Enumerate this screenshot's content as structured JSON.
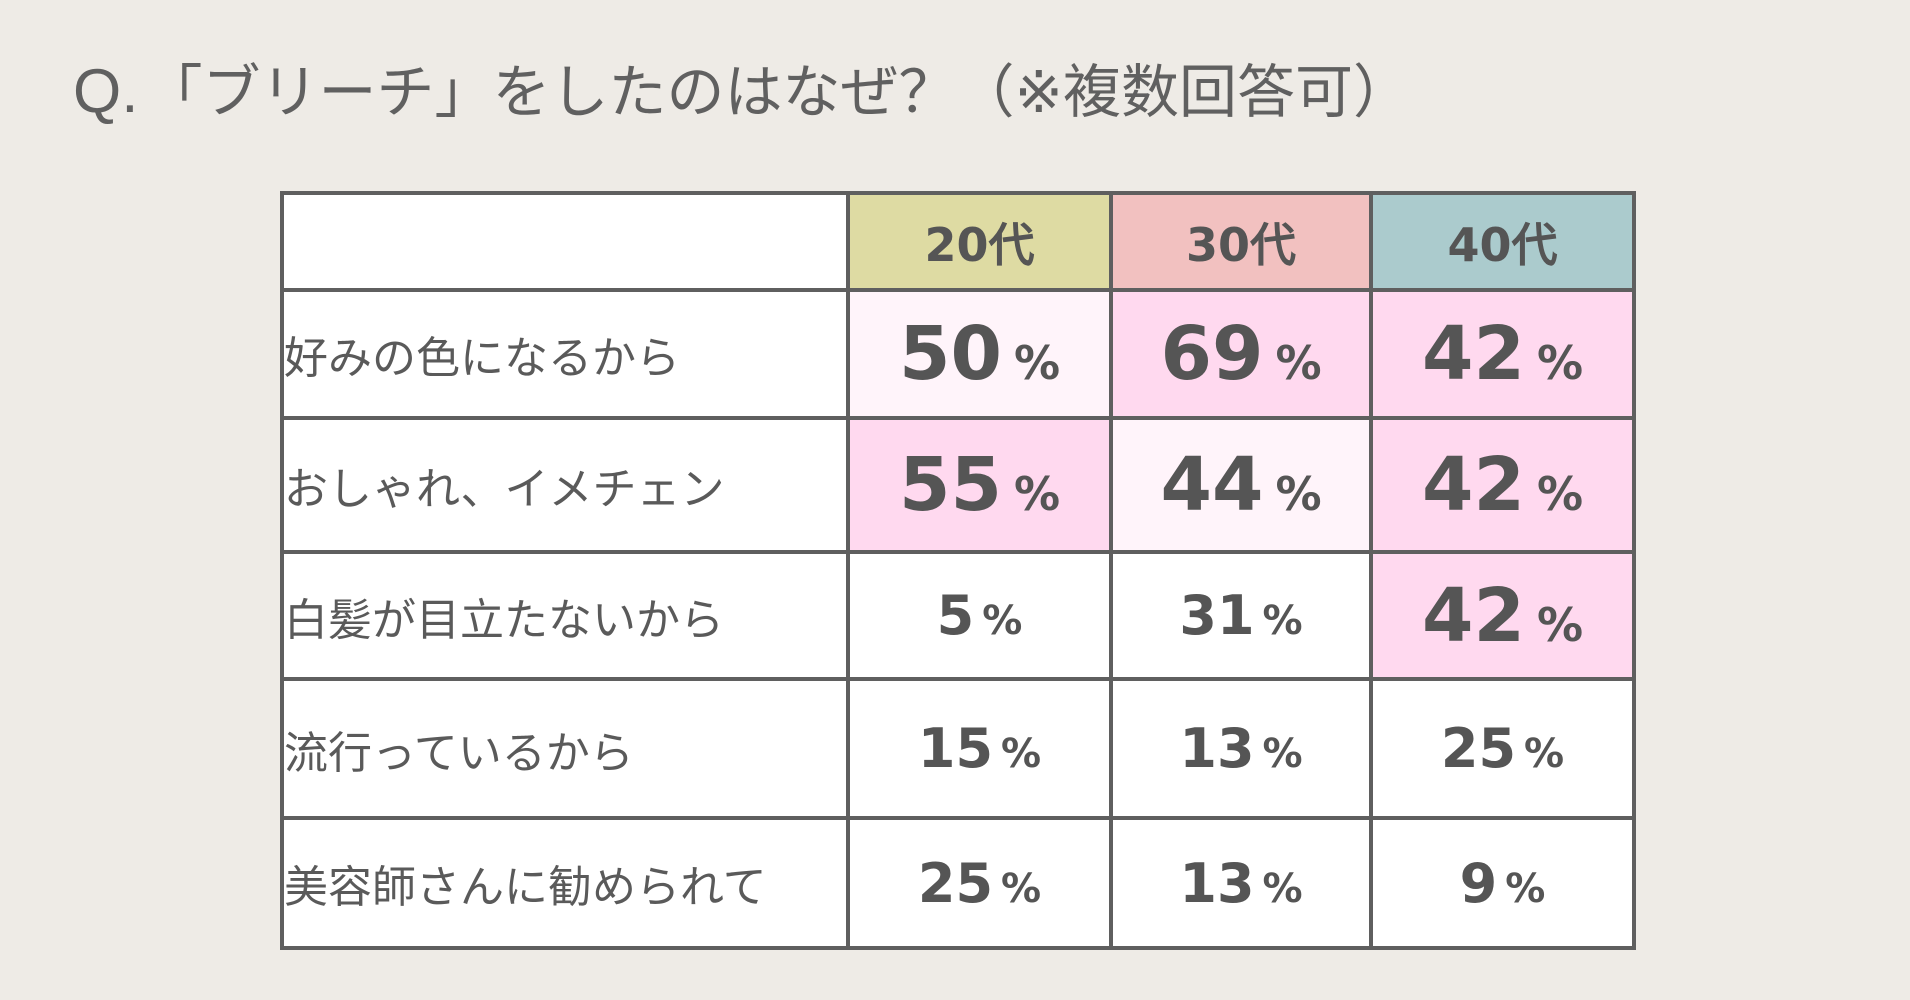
{
  "title": {
    "prefix": "Q.",
    "text": "「ブリーチ」をしたのはなぜ？（※複数回答可）"
  },
  "chart_data": {
    "type": "table",
    "title": "Q.「ブリーチ」をしたのはなぜ？（※複数回答可）",
    "unit": "%",
    "columns": [
      {
        "label": "20代",
        "color": "#dedba3"
      },
      {
        "label": "30代",
        "color": "#f2c1c0"
      },
      {
        "label": "40代",
        "color": "#abcbcd"
      }
    ],
    "rows": [
      {
        "label": "好みの色になるから",
        "values": [
          50,
          69,
          42
        ]
      },
      {
        "label": "おしゃれ、イメチェン",
        "values": [
          55,
          44,
          42
        ]
      },
      {
        "label": "白髪が目立たないから",
        "values": [
          5,
          31,
          42
        ]
      },
      {
        "label": "流行っているから",
        "values": [
          15,
          13,
          25
        ]
      },
      {
        "label": "美容師さんに勧められて",
        "values": [
          25,
          13,
          9
        ]
      }
    ],
    "highlight_colors": {
      "high": "#ffd9ef",
      "mid": "#fff4fa",
      "low": "#ffffff"
    }
  }
}
